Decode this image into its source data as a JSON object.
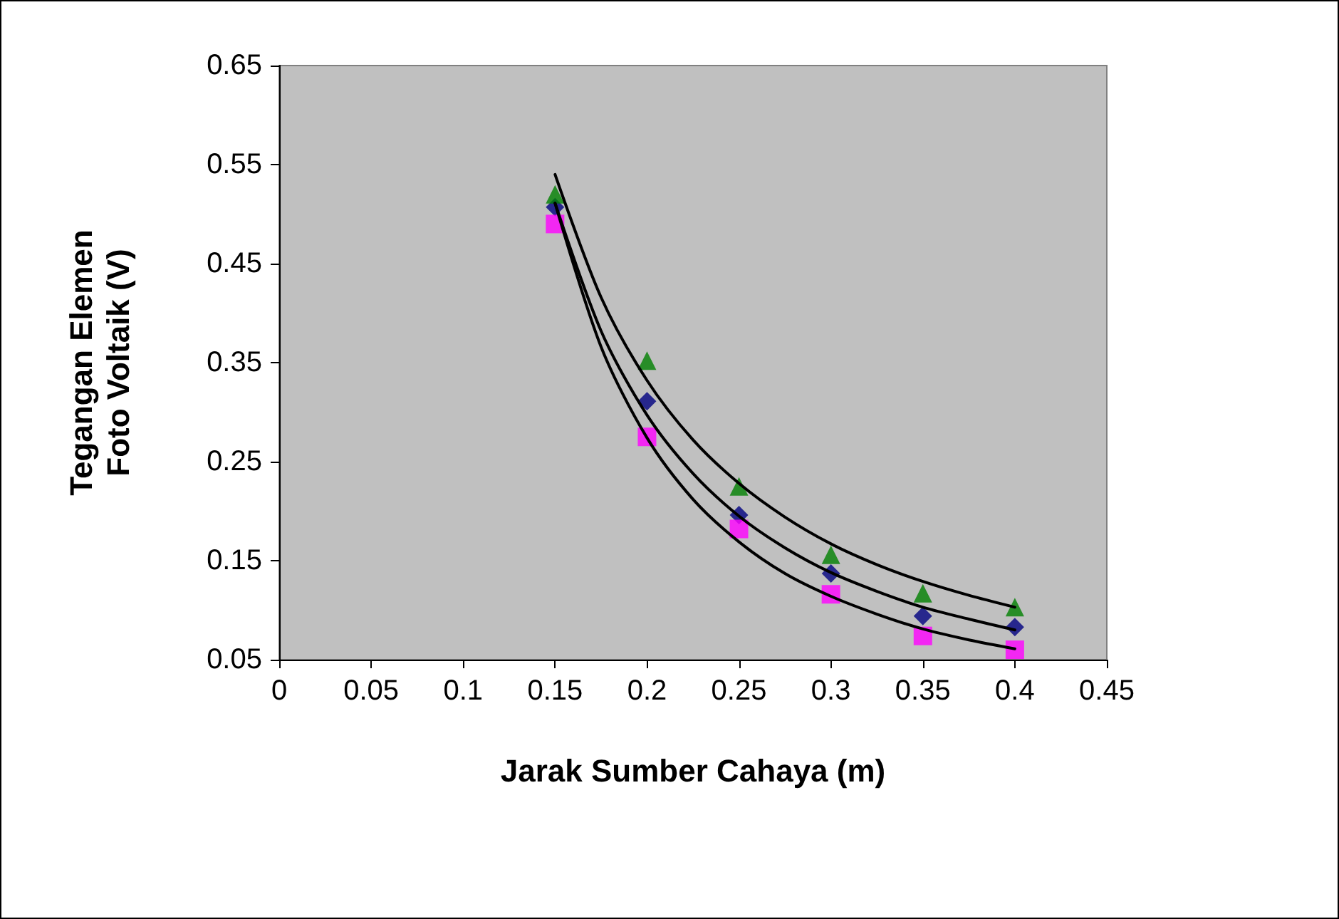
{
  "chart_data": {
    "type": "scatter",
    "xlabel": "Jarak Sumber Cahaya (m)",
    "ylabel": "Tegangan Elemen Foto Voltaik (V)",
    "x": [
      0.15,
      0.2,
      0.25,
      0.3,
      0.35,
      0.4
    ],
    "xlim": [
      0,
      0.45
    ],
    "xticks": [
      0,
      0.05,
      0.1,
      0.15,
      0.2,
      0.25,
      0.3,
      0.35,
      0.4,
      0.45
    ],
    "ylim": [
      0.05,
      0.65
    ],
    "yticks": [
      0.05,
      0.15,
      0.25,
      0.35,
      0.45,
      0.55,
      0.65
    ],
    "grid": false,
    "series": [
      {
        "marker": "diamond",
        "color": "#000080",
        "values": [
          0.507,
          0.311,
          0.196,
          0.137,
          0.094,
          0.083
        ]
      },
      {
        "marker": "square",
        "color": "#ff00ff",
        "values": [
          0.49,
          0.275,
          0.182,
          0.116,
          0.074,
          0.06
        ]
      },
      {
        "marker": "triangle",
        "color": "#008000",
        "values": [
          0.52,
          0.352,
          0.225,
          0.156,
          0.117,
          0.103
        ]
      },
      {
        "type": "line",
        "marker": "none",
        "color": "#000000",
        "x": [
          0.15,
          0.175,
          0.2,
          0.225,
          0.25,
          0.275,
          0.3,
          0.325,
          0.35,
          0.375,
          0.4
        ],
        "values": [
          0.511,
          0.382,
          0.297,
          0.238,
          0.195,
          0.163,
          0.138,
          0.119,
          0.103,
          0.091,
          0.08
        ]
      },
      {
        "type": "line",
        "marker": "none",
        "color": "#000000",
        "x": [
          0.15,
          0.175,
          0.2,
          0.225,
          0.25,
          0.275,
          0.3,
          0.325,
          0.35,
          0.375,
          0.4
        ],
        "values": [
          0.511,
          0.366,
          0.274,
          0.212,
          0.169,
          0.137,
          0.114,
          0.096,
          0.081,
          0.07,
          0.061
        ]
      },
      {
        "type": "line",
        "marker": "none",
        "color": "#000000",
        "x": [
          0.15,
          0.175,
          0.2,
          0.225,
          0.25,
          0.275,
          0.3,
          0.325,
          0.35,
          0.375,
          0.4
        ],
        "values": [
          0.54,
          0.416,
          0.332,
          0.272,
          0.228,
          0.194,
          0.167,
          0.146,
          0.129,
          0.115,
          0.103
        ]
      }
    ]
  }
}
